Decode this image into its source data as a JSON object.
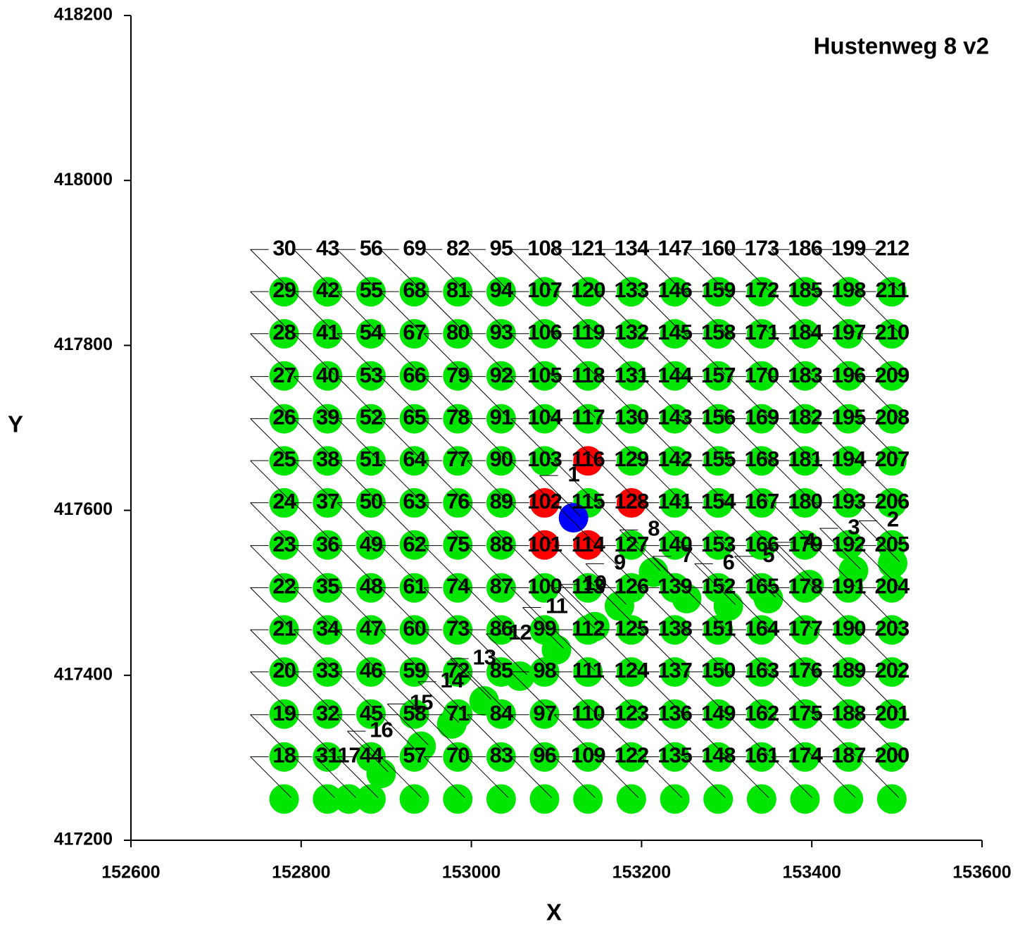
{
  "chart_data": {
    "type": "scatter",
    "title": "Hustenweg 8 v2",
    "x_label": "X",
    "y_label": "Y",
    "xlim": [
      152600,
      153600
    ],
    "xticks": [
      152600,
      152800,
      153000,
      153200,
      153400,
      153600
    ],
    "ylim": [
      417200,
      418200
    ],
    "yticks": [
      417200,
      417400,
      417600,
      417800,
      418000,
      418200
    ],
    "series": [
      {
        "color": "#00e600",
        "x": [
          153495,
          153449,
          153397,
          153349,
          153302,
          153253,
          153214,
          153174,
          153145,
          153100,
          153057,
          153015,
          152977,
          152941,
          152894,
          152856,
          152780,
          152780,
          152780,
          152780,
          152780,
          152780,
          152780,
          152780,
          152780,
          152780,
          152780,
          152780,
          152780,
          152831,
          152831,
          152831,
          152831,
          152831,
          152831,
          152831,
          152831,
          152831,
          152831,
          152831,
          152831,
          152831,
          152882,
          152882,
          152882,
          152882,
          152882,
          152882,
          152882,
          152882,
          152882,
          152882,
          152882,
          152882,
          152882,
          152933,
          152933,
          152933,
          152933,
          152933,
          152933,
          152933,
          152933,
          152933,
          152933,
          152933,
          152933,
          152933,
          152984,
          152984,
          152984,
          152984,
          152984,
          152984,
          152984,
          152984,
          152984,
          152984,
          152984,
          152984,
          152984,
          153035,
          153035,
          153035,
          153035,
          153035,
          153035,
          153035,
          153035,
          153035,
          153035,
          153035,
          153035,
          153035,
          153086,
          153086,
          153086,
          153086,
          153086,
          153086,
          153086,
          153086,
          153086,
          153086,
          153086,
          153137,
          153137,
          153137,
          153137,
          153137,
          153137,
          153137,
          153137,
          153137,
          153137,
          153137,
          153188,
          153188,
          153188,
          153188,
          153188,
          153188,
          153188,
          153188,
          153188,
          153188,
          153188,
          153188,
          153239,
          153239,
          153239,
          153239,
          153239,
          153239,
          153239,
          153239,
          153239,
          153239,
          153239,
          153239,
          153239,
          153290,
          153290,
          153290,
          153290,
          153290,
          153290,
          153290,
          153290,
          153290,
          153290,
          153290,
          153290,
          153290,
          153341,
          153341,
          153341,
          153341,
          153341,
          153341,
          153341,
          153341,
          153341,
          153341,
          153341,
          153341,
          153341,
          153392,
          153392,
          153392,
          153392,
          153392,
          153392,
          153392,
          153392,
          153392,
          153392,
          153392,
          153392,
          153392,
          153443,
          153443,
          153443,
          153443,
          153443,
          153443,
          153443,
          153443,
          153443,
          153443,
          153443,
          153443,
          153443,
          153494,
          153494,
          153494,
          153494,
          153494,
          153494,
          153494,
          153494,
          153494,
          153494,
          153494,
          153494,
          153494
        ],
        "y": [
          417536,
          417527,
          417510,
          417493,
          417484,
          417493,
          417525,
          417484,
          417459,
          417431,
          417399,
          417369,
          417341,
          417314,
          417281,
          417250,
          417250,
          417301,
          417353,
          417404,
          417455,
          417506,
          417558,
          417609,
          417660,
          417711,
          417763,
          417814,
          417865,
          417250,
          417301,
          417353,
          417404,
          417455,
          417506,
          417558,
          417609,
          417660,
          417711,
          417763,
          417814,
          417865,
          417250,
          417301,
          417353,
          417404,
          417455,
          417506,
          417558,
          417609,
          417660,
          417711,
          417763,
          417814,
          417865,
          417250,
          417301,
          417353,
          417404,
          417455,
          417506,
          417558,
          417609,
          417660,
          417711,
          417763,
          417814,
          417865,
          417250,
          417301,
          417353,
          417404,
          417455,
          417506,
          417558,
          417609,
          417660,
          417711,
          417763,
          417814,
          417865,
          417250,
          417301,
          417353,
          417404,
          417455,
          417506,
          417558,
          417609,
          417660,
          417711,
          417763,
          417814,
          417865,
          417250,
          417301,
          417353,
          417404,
          417455,
          417506,
          417660,
          417711,
          417763,
          417814,
          417865,
          417250,
          417301,
          417353,
          417404,
          417455,
          417506,
          417609,
          417711,
          417763,
          417814,
          417865,
          417250,
          417301,
          417353,
          417404,
          417455,
          417506,
          417558,
          417660,
          417711,
          417763,
          417814,
          417865,
          417250,
          417301,
          417353,
          417404,
          417455,
          417506,
          417558,
          417609,
          417660,
          417711,
          417763,
          417814,
          417865,
          417250,
          417301,
          417353,
          417404,
          417455,
          417506,
          417558,
          417609,
          417660,
          417711,
          417763,
          417814,
          417865,
          417250,
          417301,
          417353,
          417404,
          417455,
          417506,
          417558,
          417609,
          417660,
          417711,
          417763,
          417814,
          417865,
          417250,
          417301,
          417353,
          417404,
          417455,
          417506,
          417558,
          417609,
          417660,
          417711,
          417763,
          417814,
          417865,
          417250,
          417301,
          417353,
          417404,
          417455,
          417506,
          417558,
          417609,
          417660,
          417711,
          417763,
          417814,
          417865,
          417250,
          417301,
          417353,
          417404,
          417455,
          417506,
          417558,
          417609,
          417660,
          417711,
          417763,
          417814,
          417865
        ],
        "labels": [
          "2",
          "3",
          "4",
          "5",
          "6",
          "7",
          "8",
          "9",
          "10",
          "11",
          "12",
          "13",
          "14",
          "15",
          "16",
          "17",
          "18",
          "19",
          "20",
          "21",
          "22",
          "23",
          "24",
          "25",
          "26",
          "27",
          "28",
          "29",
          "30",
          "31",
          "32",
          "33",
          "34",
          "35",
          "36",
          "37",
          "38",
          "39",
          "40",
          "41",
          "42",
          "43",
          "44",
          "45",
          "46",
          "47",
          "48",
          "49",
          "50",
          "51",
          "52",
          "53",
          "54",
          "55",
          "56",
          "57",
          "58",
          "59",
          "60",
          "61",
          "62",
          "63",
          "64",
          "65",
          "66",
          "67",
          "68",
          "69",
          "70",
          "71",
          "72",
          "73",
          "74",
          "75",
          "76",
          "77",
          "78",
          "79",
          "80",
          "81",
          "82",
          "83",
          "84",
          "85",
          "86",
          "87",
          "88",
          "89",
          "90",
          "91",
          "92",
          "93",
          "94",
          "95",
          "96",
          "97",
          "98",
          "99",
          "100",
          "101",
          "104",
          "105",
          "106",
          "107",
          "108",
          "109",
          "110",
          "111",
          "112",
          "113",
          "114",
          "116",
          "118",
          "119",
          "120",
          "121",
          "122",
          "123",
          "124",
          "125",
          "126",
          "127",
          "128",
          "130",
          "131",
          "132",
          "133",
          "134",
          "135",
          "136",
          "137",
          "138",
          "139",
          "140",
          "141",
          "142",
          "143",
          "144",
          "145",
          "146",
          "147",
          "148",
          "149",
          "150",
          "151",
          "152",
          "153",
          "154",
          "155",
          "156",
          "157",
          "158",
          "159",
          "160",
          "161",
          "162",
          "163",
          "164",
          "165",
          "166",
          "167",
          "168",
          "169",
          "170",
          "171",
          "172",
          "173",
          "174",
          "175",
          "176",
          "177",
          "178",
          "179",
          "180",
          "181",
          "182",
          "183",
          "184",
          "185",
          "186",
          "187",
          "188",
          "189",
          "190",
          "191",
          "192",
          "193",
          "194",
          "195",
          "196",
          "197",
          "198",
          "199",
          "200",
          "201",
          "202",
          "203",
          "204",
          "205",
          "206",
          "207",
          "208",
          "209",
          "210",
          "211",
          "212"
        ]
      },
      {
        "color": "#ff0000",
        "x": [
          153086,
          153086,
          153137,
          153137,
          153188
        ],
        "y": [
          417558,
          417609,
          417558,
          417660,
          417609
        ],
        "labels": [
          "102",
          "103",
          "115",
          "117",
          "129"
        ]
      },
      {
        "color": "#0000ff",
        "x": [
          153120
        ],
        "y": [
          417591
        ],
        "labels": [
          "1"
        ]
      }
    ]
  }
}
